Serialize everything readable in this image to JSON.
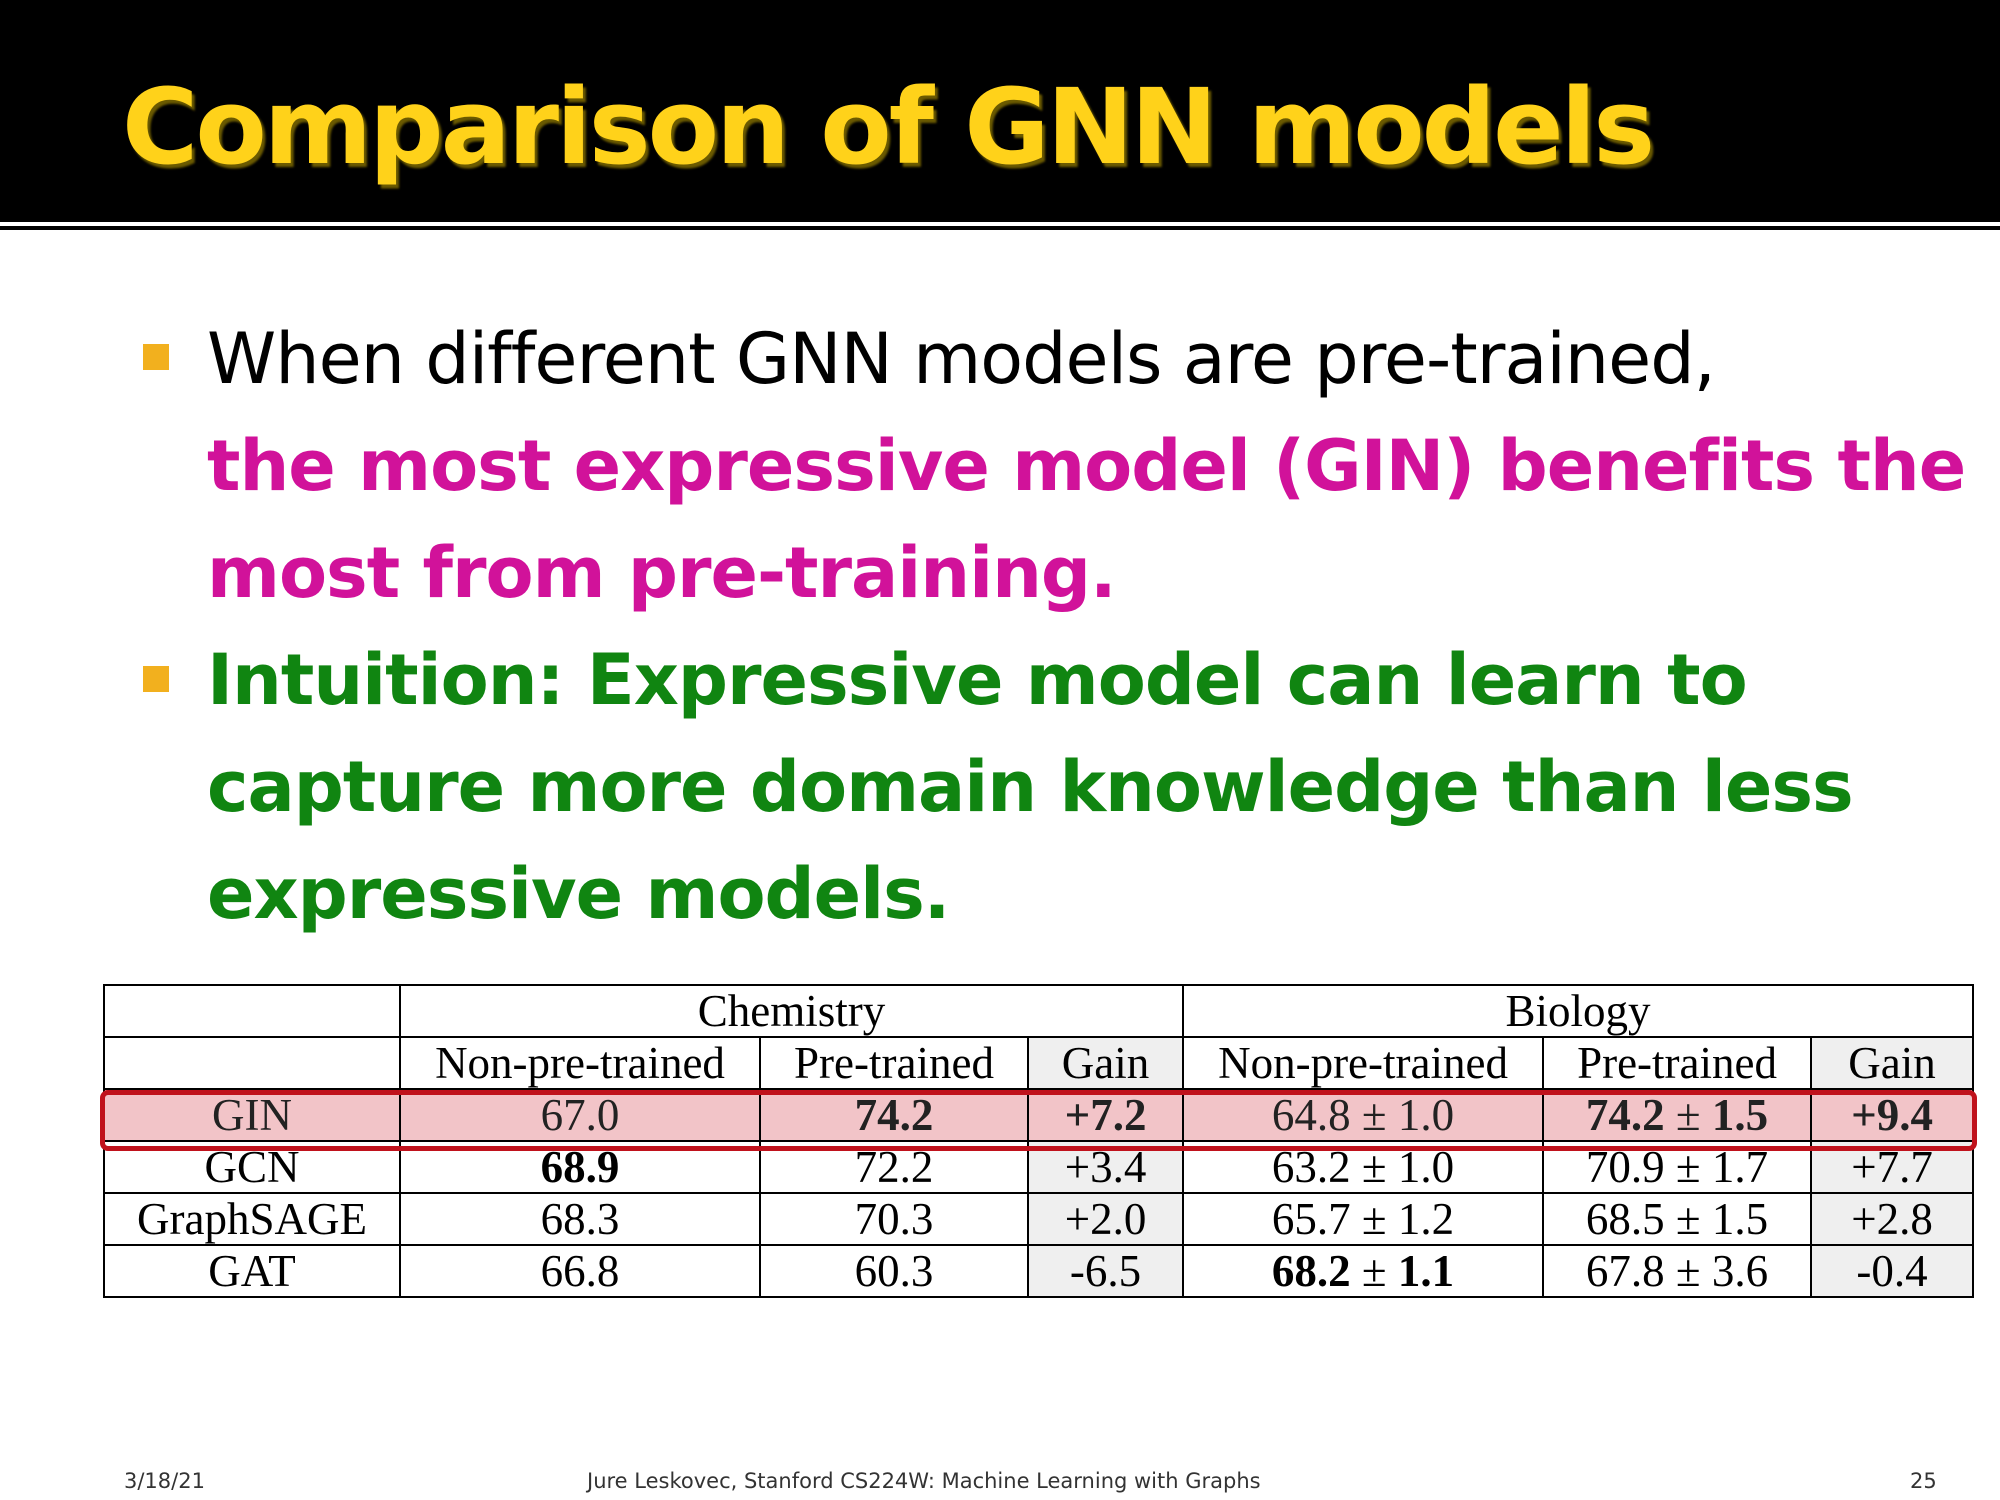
{
  "slide": {
    "title": "Comparison of GNN models",
    "bullets": [
      {
        "line1": "When different GNN models are pre-trained,",
        "line2": "the most expressive model (GIN) benefits the",
        "line3": "most from pre-training."
      },
      {
        "line1": "Intuition: Expressive model can learn to",
        "line2": "capture more domain knowledge than less",
        "line3": "expressive models."
      }
    ],
    "colors": {
      "title": "#ffd21a",
      "title_bar": "#000000",
      "bullet_marker": "#f2b01e",
      "emphasis_magenta": "#d1129a",
      "emphasis_green": "#108511",
      "highlight_box": "#c0121c",
      "highlight_fill": "#f2c4c8"
    }
  },
  "table": {
    "groups": [
      "Chemistry",
      "Biology"
    ],
    "headers": [
      "Non-pre-trained",
      "Pre-trained",
      "Gain",
      "Non-pre-trained",
      "Pre-trained",
      "Gain"
    ],
    "rows": [
      {
        "model": "GIN",
        "chem_non": "67.0",
        "chem_pre": "74.2",
        "chem_gain": "+7.2",
        "bio_non_mean": "64.8",
        "bio_non_std": "1.0",
        "bio_pre_mean": "74.2",
        "bio_pre_std": "1.5",
        "bio_gain": "+9.4",
        "highlighted": true
      },
      {
        "model": "GCN",
        "chem_non": "68.9",
        "chem_pre": "72.2",
        "chem_gain": "+3.4",
        "bio_non_mean": "63.2",
        "bio_non_std": "1.0",
        "bio_pre_mean": "70.9",
        "bio_pre_std": "1.7",
        "bio_gain": "+7.7"
      },
      {
        "model": "GraphSAGE",
        "chem_non": "68.3",
        "chem_pre": "70.3",
        "chem_gain": "+2.0",
        "bio_non_mean": "65.7",
        "bio_non_std": "1.2",
        "bio_pre_mean": "68.5",
        "bio_pre_std": "1.5",
        "bio_gain": "+2.8"
      },
      {
        "model": "GAT",
        "chem_non": "66.8",
        "chem_pre": "60.3",
        "chem_gain": "-6.5",
        "bio_non_mean": "68.2",
        "bio_non_std": "1.1",
        "bio_pre_mean": "67.8",
        "bio_pre_std": "3.6",
        "bio_gain": "-0.4"
      }
    ],
    "pm": "±"
  },
  "footer": {
    "date": "3/18/21",
    "credit": "Jure Leskovec, Stanford CS224W: Machine Learning with Graphs",
    "page": "25"
  }
}
